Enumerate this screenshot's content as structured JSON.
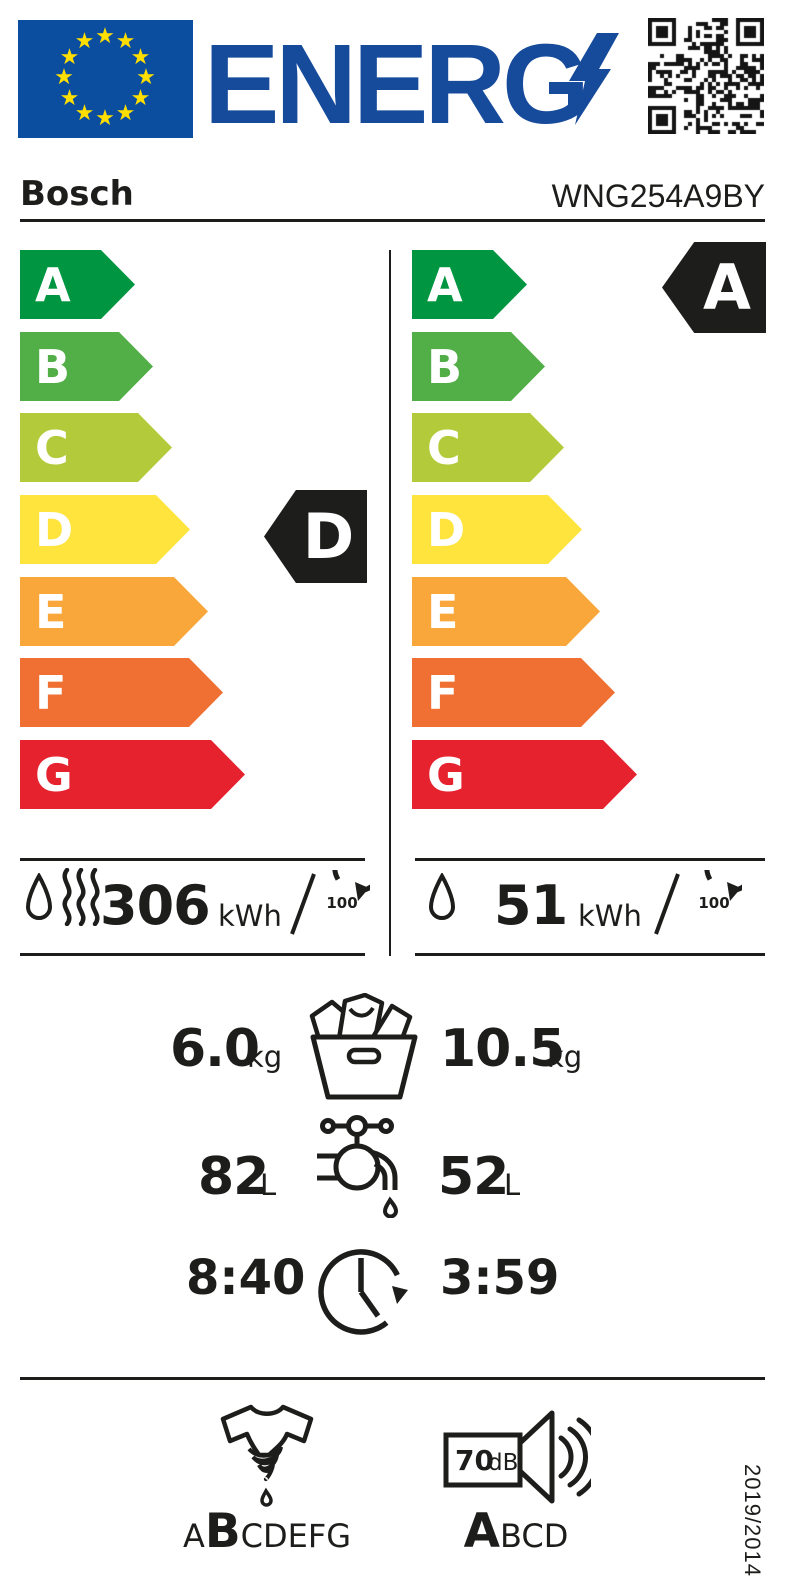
{
  "label": {
    "energy_word": "ENERG",
    "supplier": "Bosch",
    "model": "WNG254A9BY"
  },
  "scale": {
    "classes": [
      "A",
      "B",
      "C",
      "D",
      "E",
      "F",
      "G"
    ],
    "colors": [
      "#009641",
      "#52ae46",
      "#b3cb3a",
      "#fee43d",
      "#f9a73b",
      "#ef7032",
      "#e6222f"
    ],
    "left_rating": "D",
    "right_rating": "A"
  },
  "consumption": {
    "left_value": "306",
    "right_value": "51",
    "unit": "kWh",
    "per_cycles": "100"
  },
  "capacity": {
    "left_value": "6.0",
    "right_value": "10.5",
    "unit": "kg"
  },
  "water": {
    "left_value": "82",
    "right_value": "52",
    "unit": "L"
  },
  "duration": {
    "left_value": "8:40",
    "right_value": "3:59"
  },
  "spin_class": {
    "before": "A",
    "selected": "B",
    "after": "CDEFG"
  },
  "noise": {
    "value": "70",
    "unit": "dB",
    "selected": "A",
    "after": "BCD"
  },
  "regulation": "2019/2014",
  "ui_colors": {
    "brand_blue": "#164a9b",
    "flag_blue": "#0b4ea0",
    "star_yellow": "#ffde00",
    "ink": "#1d1d1b"
  }
}
